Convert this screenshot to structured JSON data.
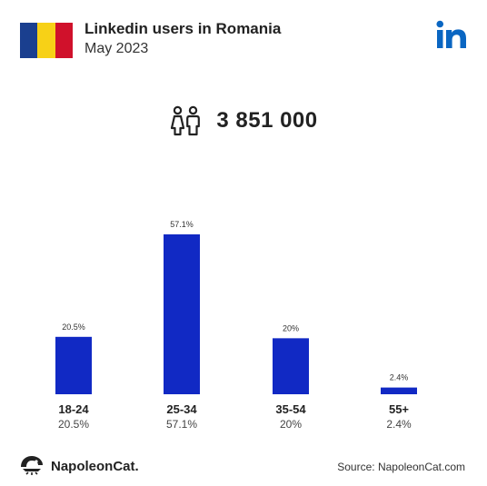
{
  "header": {
    "title": "Linkedin users in Romania",
    "subtitle": "May 2023",
    "flag_colors": [
      "#1a3f8f",
      "#f7d117",
      "#d0112b"
    ],
    "logo_icon": "linkedin-icon",
    "logo_color": "#0a66c2"
  },
  "total": {
    "icon": "people-icon",
    "value": "3 851 000"
  },
  "chart_data": {
    "type": "bar",
    "categories": [
      "18-24",
      "25-34",
      "35-54",
      "55+"
    ],
    "values": [
      20.5,
      57.1,
      20,
      2.4
    ],
    "value_labels": [
      "20.5%",
      "57.1%",
      "20%",
      "2.4%"
    ],
    "bar_color": "#1129c4",
    "title": "",
    "xlabel": "",
    "ylabel": ""
  },
  "footer": {
    "brand": "NapoleonCat.",
    "source": "Source: NapoleonCat.com"
  }
}
